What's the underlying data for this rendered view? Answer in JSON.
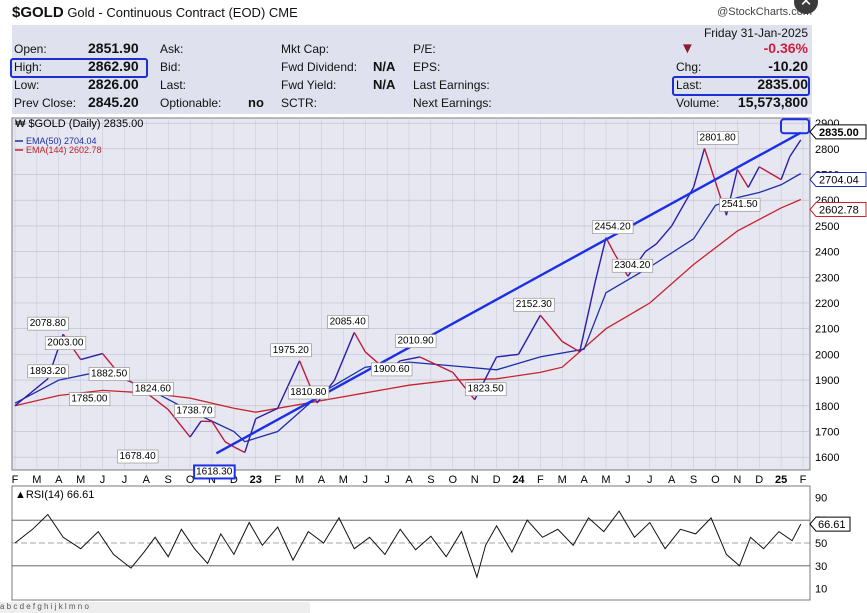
{
  "header": {
    "symbol": "$GOLD",
    "name": "Gold - Continuous Contract (EOD)",
    "exchange": "CME",
    "credit": "@StockCharts.com",
    "date": "Friday  31-Jan-2025",
    "change_pct": "-0.36%",
    "change_label": "Chg:",
    "change": "-10.20",
    "last_label": "Last:",
    "last": "2835.00",
    "volume_label": "Volume:",
    "volume": "15,573,800"
  },
  "stats": {
    "open_label": "Open:",
    "open": "2851.90",
    "high_label": "High:",
    "high": "2862.90",
    "low_label": "Low:",
    "low": "2826.00",
    "prev_label": "Prev Close:",
    "prev": "2845.20",
    "ask": "Ask:",
    "bid": "Bid:",
    "last": "Last:",
    "optionable": "Optionable:",
    "optionable_val": "no",
    "mktcap": "Mkt Cap:",
    "fwd_div": "Fwd Dividend:",
    "fwd_div_val": "N/A",
    "fwd_yield": "Fwd Yield:",
    "fwd_yield_val": "N/A",
    "sctr": "SCTR:",
    "pe": "P/E:",
    "eps": "EPS:",
    "last_earn": "Last Earnings:",
    "next_earn": "Next Earnings:"
  },
  "colors": {
    "price": "#2a1fa8",
    "down": "#c01a3a",
    "ema50": "#1c2fa8",
    "ema144": "#c8232c",
    "trendline": "#1a2fe6",
    "panel_bg": "#e6e7f1",
    "header_bg": "#dfe2ee",
    "rsi_fill": "#3a6b3a"
  },
  "chart_data": [
    {
      "type": "line",
      "legend": [
        "$GOLD (Daily) 2835.00",
        "EMA(50) 2704.04",
        "EMA(144) 2602.78"
      ],
      "ylim": [
        1550,
        2920
      ],
      "yticks": [
        1600,
        1700,
        1800,
        1900,
        2000,
        2100,
        2200,
        2300,
        2400,
        2500,
        2600,
        2700,
        2800,
        2900
      ],
      "x_labels": [
        "F",
        "M",
        "A",
        "M",
        "J",
        "J",
        "A",
        "S",
        "O",
        "N",
        "D",
        "23",
        "F",
        "M",
        "A",
        "M",
        "J",
        "J",
        "A",
        "S",
        "O",
        "N",
        "D",
        "24",
        "F",
        "M",
        "A",
        "M",
        "J",
        "J",
        "A",
        "S",
        "O",
        "N",
        "D",
        "25",
        "F"
      ],
      "series": [
        {
          "name": "$GOLD",
          "x": [
            0,
            1.5,
            2.2,
            3,
            4,
            4.8,
            5.5,
            6,
            6.4,
            7,
            8,
            8.5,
            9,
            9.6,
            10,
            10.5,
            11,
            12,
            13,
            13.8,
            14.6,
            15.5,
            16,
            17,
            17.6,
            18.5,
            19.5,
            20,
            21,
            22,
            23,
            24,
            25,
            25.8,
            26.5,
            27,
            27.4,
            28,
            28.8,
            29.3,
            30,
            31,
            31.5,
            32.5,
            33,
            33.5,
            34,
            35,
            35.4,
            35.9
          ],
          "values": [
            1800,
            1905,
            2078.8,
            1980,
            2003,
            1920,
            1882.5,
            1850,
            1824.6,
            1785,
            1678.4,
            1740,
            1738.7,
            1660,
            1640,
            1618.3,
            1750,
            1790,
            1975.2,
            1810.8,
            1900,
            2085.4,
            2010,
            1935,
            1975,
            1990,
            1950,
            1930,
            1823.5,
            1990,
            2000,
            2152.3,
            2050,
            2010,
            2280,
            2454.2,
            2390,
            2304.2,
            2400,
            2430,
            2500,
            2650,
            2801.8,
            2541.5,
            2720,
            2650,
            2730,
            2680,
            2770,
            2835
          ]
        },
        {
          "name": "EMA(50)",
          "x": [
            0,
            2,
            4,
            6,
            8,
            10,
            10.5,
            12,
            14,
            16,
            18,
            20,
            22,
            24,
            26,
            27,
            29,
            31,
            32,
            33,
            34,
            35,
            35.9
          ],
          "values": [
            1810,
            1900,
            1935,
            1870,
            1780,
            1700,
            1660,
            1700,
            1850,
            1950,
            1970,
            1955,
            1940,
            1990,
            2020,
            2240,
            2340,
            2450,
            2580,
            2610,
            2630,
            2660,
            2704.04
          ]
        },
        {
          "name": "EMA(144)",
          "x": [
            0,
            2,
            4,
            6,
            8,
            10,
            11,
            14,
            18,
            20,
            22,
            24,
            25,
            27,
            29,
            31,
            33,
            35,
            35.9
          ],
          "values": [
            1800,
            1840,
            1860,
            1850,
            1830,
            1790,
            1775,
            1820,
            1880,
            1900,
            1905,
            1930,
            1950,
            2100,
            2200,
            2350,
            2480,
            2570,
            2602.78
          ]
        }
      ],
      "annotations": [
        {
          "x": 1.5,
          "y": 2078.8,
          "text": "2078.80"
        },
        {
          "x": 2.3,
          "y": 2003,
          "text": "2003.00"
        },
        {
          "x": 1.5,
          "y": 1893.2,
          "text": "1893.20"
        },
        {
          "x": 4.3,
          "y": 1882.5,
          "text": "1882.50"
        },
        {
          "x": 6.3,
          "y": 1824.6,
          "text": "1824.60"
        },
        {
          "x": 3.4,
          "y": 1785,
          "text": "1785.00"
        },
        {
          "x": 8.2,
          "y": 1738.7,
          "text": "1738.70"
        },
        {
          "x": 5.6,
          "y": 1678.4,
          "text": "1678.40"
        },
        {
          "x": 9.1,
          "y": 1618.3,
          "text": "1618.30"
        },
        {
          "x": 12.6,
          "y": 1975.2,
          "text": "1975.20"
        },
        {
          "x": 13.4,
          "y": 1810.8,
          "text": "1810.80"
        },
        {
          "x": 15.2,
          "y": 2085.4,
          "text": "2085.40"
        },
        {
          "x": 18.3,
          "y": 2010.9,
          "text": "2010.90"
        },
        {
          "x": 17.2,
          "y": 1900.6,
          "text": "1900.60"
        },
        {
          "x": 21.5,
          "y": 1823.5,
          "text": "1823.50"
        },
        {
          "x": 23.7,
          "y": 2152.3,
          "text": "2152.30"
        },
        {
          "x": 27.3,
          "y": 2454.2,
          "text": "2454.20"
        },
        {
          "x": 28.2,
          "y": 2304.2,
          "text": "2304.20"
        },
        {
          "x": 32.1,
          "y": 2801.8,
          "text": "2801.80"
        },
        {
          "x": 33.1,
          "y": 2541.5,
          "text": "2541.50"
        }
      ],
      "price_tags": [
        {
          "y": 2835,
          "text": "2835.00",
          "style": "bold"
        },
        {
          "y": 2704.04,
          "text": "2704.04",
          "style": "ema50"
        },
        {
          "y": 2602.78,
          "text": "2602.78",
          "style": "ema144"
        }
      ],
      "trendline": {
        "x": [
          9.2,
          35.9
        ],
        "values": [
          1615,
          2862.9
        ]
      }
    },
    {
      "type": "line",
      "legend": [
        "RSI(14) 66.61"
      ],
      "ylim": [
        0,
        100
      ],
      "yticks": [
        10,
        30,
        50,
        70,
        90
      ],
      "overbought": 70,
      "oversold": 30,
      "series": [
        {
          "name": "RSI(14)",
          "x": [
            0,
            0.8,
            1.5,
            2.2,
            3,
            3.8,
            4.5,
            5.3,
            5.9,
            6.4,
            7,
            7.6,
            8.2,
            8.8,
            9.4,
            10,
            10.7,
            11.3,
            12,
            12.7,
            13.4,
            14.1,
            14.8,
            15.5,
            16.2,
            16.9,
            17.6,
            18.3,
            19,
            19.7,
            20.4,
            21.1,
            21.5,
            22,
            22.7,
            23.4,
            24.1,
            24.8,
            25.5,
            26.2,
            26.9,
            27.6,
            28.3,
            29,
            29.7,
            30.4,
            31.1,
            31.8,
            32.5,
            33.1,
            33.6,
            34.2,
            34.9,
            35.5,
            35.9
          ],
          "values": [
            50,
            62,
            75,
            55,
            45,
            60,
            40,
            28,
            42,
            55,
            38,
            62,
            45,
            32,
            58,
            40,
            68,
            48,
            64,
            35,
            60,
            50,
            72,
            45,
            55,
            40,
            62,
            44,
            56,
            38,
            60,
            20,
            48,
            65,
            42,
            70,
            55,
            62,
            48,
            72,
            60,
            78,
            55,
            68,
            45,
            62,
            58,
            72,
            40,
            30,
            55,
            45,
            60,
            52,
            66.61
          ]
        }
      ]
    }
  ],
  "footer": "a  b  c  d  e  f  g  h  i  j  k  l  m  n  o"
}
